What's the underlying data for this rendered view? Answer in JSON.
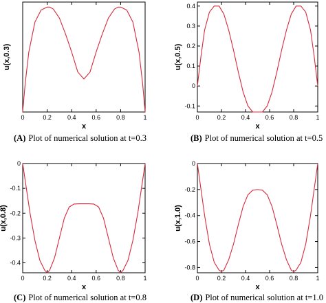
{
  "chart_data": [
    {
      "type": "line",
      "panel_label": "(A)",
      "caption": "Plot of numerical solution at t=0.3",
      "xlabel": "x",
      "ylabel": "u(x,0.3)",
      "xlim": [
        0,
        1
      ],
      "ylim": [
        0,
        0.55
      ],
      "xticks": [
        "0",
        "0.2",
        "0.4",
        "0.6",
        "0.8",
        "1"
      ],
      "yticks": [],
      "grid": false,
      "series": [
        {
          "color": "#d62a3a",
          "x": [
            0,
            0.02,
            0.05,
            0.1,
            0.15,
            0.2,
            0.22,
            0.25,
            0.3,
            0.35,
            0.4,
            0.45,
            0.5,
            0.55,
            0.6,
            0.65,
            0.7,
            0.75,
            0.78,
            0.8,
            0.85,
            0.9,
            0.95,
            0.98,
            1
          ],
          "y": [
            0,
            0.14,
            0.3,
            0.45,
            0.51,
            0.525,
            0.525,
            0.515,
            0.47,
            0.39,
            0.3,
            0.2,
            0.165,
            0.2,
            0.3,
            0.39,
            0.47,
            0.515,
            0.525,
            0.525,
            0.51,
            0.45,
            0.3,
            0.14,
            0
          ]
        }
      ]
    },
    {
      "type": "line",
      "panel_label": "(B)",
      "caption": "Plot of numerical solution at t=0.5",
      "xlabel": "x",
      "ylabel": "u(x,0.5)",
      "xlim": [
        0,
        1
      ],
      "ylim": [
        -0.13,
        0.42
      ],
      "xticks": [
        "0",
        "0.2",
        "0.4",
        "0.6",
        "0.8",
        "1"
      ],
      "yticks": [
        "-0.1",
        "0",
        "0.1",
        "0.2",
        "0.3",
        "0.4"
      ],
      "grid": false,
      "series": [
        {
          "color": "#d62a3a",
          "x": [
            0,
            0.03,
            0.06,
            0.1,
            0.14,
            0.18,
            0.22,
            0.26,
            0.3,
            0.34,
            0.38,
            0.42,
            0.46,
            0.5,
            0.54,
            0.58,
            0.62,
            0.66,
            0.7,
            0.74,
            0.78,
            0.82,
            0.86,
            0.9,
            0.94,
            0.97,
            1
          ],
          "y": [
            0,
            0.15,
            0.28,
            0.37,
            0.4,
            0.4,
            0.36,
            0.28,
            0.18,
            0.07,
            -0.03,
            -0.1,
            -0.13,
            -0.13,
            -0.13,
            -0.1,
            -0.03,
            0.07,
            0.18,
            0.28,
            0.36,
            0.4,
            0.4,
            0.37,
            0.28,
            0.15,
            0
          ]
        }
      ]
    },
    {
      "type": "line",
      "panel_label": "(C)",
      "caption": "Plot of numerical solution at t=0.8",
      "xlabel": "x",
      "ylabel": "u(x,0.8)",
      "xlim": [
        0,
        1
      ],
      "ylim": [
        -0.44,
        0.0
      ],
      "xticks": [
        "0",
        "0.2",
        "0.4",
        "0.6",
        "0.8",
        "1"
      ],
      "yticks": [
        "-0.4",
        "-0.3",
        "-0.2",
        "-0.1",
        "0"
      ],
      "grid": false,
      "series": [
        {
          "color": "#d62a3a",
          "x": [
            0,
            0.03,
            0.06,
            0.1,
            0.14,
            0.18,
            0.2,
            0.22,
            0.26,
            0.3,
            0.34,
            0.38,
            0.42,
            0.46,
            0.5,
            0.54,
            0.58,
            0.62,
            0.66,
            0.7,
            0.74,
            0.78,
            0.8,
            0.82,
            0.86,
            0.9,
            0.94,
            0.97,
            1
          ],
          "y": [
            0,
            -0.1,
            -0.2,
            -0.31,
            -0.39,
            -0.43,
            -0.44,
            -0.43,
            -0.38,
            -0.3,
            -0.22,
            -0.175,
            -0.163,
            -0.162,
            -0.162,
            -0.162,
            -0.163,
            -0.175,
            -0.22,
            -0.3,
            -0.38,
            -0.43,
            -0.44,
            -0.43,
            -0.39,
            -0.31,
            -0.2,
            -0.1,
            0
          ]
        }
      ]
    },
    {
      "type": "line",
      "panel_label": "(D)",
      "caption": "Plot of numerical solution at t=1.0",
      "xlabel": "x",
      "ylabel": "u(x,1.0)",
      "xlim": [
        0,
        1
      ],
      "ylim": [
        -0.84,
        0.0
      ],
      "xticks": [
        "0",
        "0.2",
        "0.4",
        "0.6",
        "0.8",
        "1"
      ],
      "yticks": [
        "-0.8",
        "-0.6",
        "-0.4",
        "-0.2",
        "0"
      ],
      "grid": false,
      "series": [
        {
          "color": "#d62a3a",
          "x": [
            0,
            0.03,
            0.06,
            0.1,
            0.14,
            0.18,
            0.2,
            0.22,
            0.26,
            0.3,
            0.34,
            0.38,
            0.42,
            0.46,
            0.5,
            0.54,
            0.58,
            0.62,
            0.66,
            0.7,
            0.74,
            0.78,
            0.8,
            0.82,
            0.86,
            0.9,
            0.94,
            0.97,
            1
          ],
          "y": [
            0,
            -0.2,
            -0.4,
            -0.62,
            -0.76,
            -0.82,
            -0.83,
            -0.82,
            -0.74,
            -0.62,
            -0.47,
            -0.33,
            -0.24,
            -0.205,
            -0.2,
            -0.205,
            -0.24,
            -0.33,
            -0.47,
            -0.62,
            -0.74,
            -0.82,
            -0.83,
            -0.82,
            -0.76,
            -0.62,
            -0.4,
            -0.2,
            0
          ]
        }
      ]
    }
  ]
}
